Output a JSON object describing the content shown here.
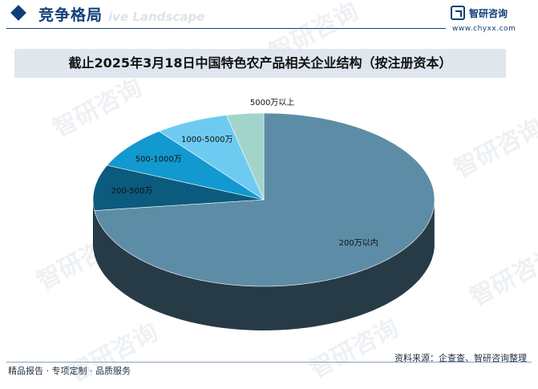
{
  "header": {
    "section_title": "竞争格局",
    "ghost_text": "ive Landscape",
    "logo_name": "智研咨询",
    "logo_url": "www.chyxx.com"
  },
  "watermark": "智研咨询",
  "chart_data": {
    "type": "pie",
    "title": "截止2025年3月18日中国特色农产品相关企业结构（按注册资本）",
    "slices": [
      {
        "label": "200万以内",
        "value": 73.0,
        "color": "#5d8da6"
      },
      {
        "label": "200-500万",
        "value": 8.5,
        "color": "#0a5b7d"
      },
      {
        "label": "500-1000万",
        "value": 8.0,
        "color": "#1299d0"
      },
      {
        "label": "1000-5000万",
        "value": 7.0,
        "color": "#6dcbf2"
      },
      {
        "label": "5000万以上",
        "value": 3.5,
        "color": "#a3d4cc"
      }
    ]
  },
  "footer": {
    "left": "精品报告 · 专项定制 · 品质服务",
    "source": "资料来源：企查查、智研咨询整理"
  }
}
